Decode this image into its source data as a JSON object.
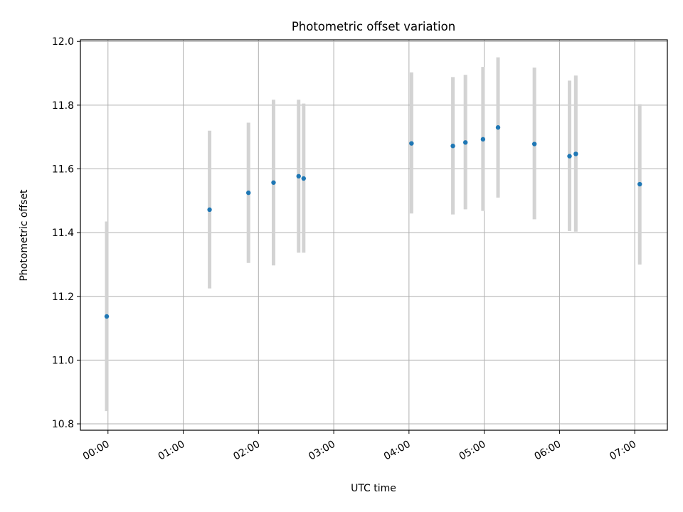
{
  "chart_data": {
    "type": "scatter",
    "title": "Photometric offset variation",
    "xlabel": "UTC time",
    "ylabel": "Photometric offset",
    "xlim": [
      "23:38",
      "07:26"
    ],
    "ylim": [
      10.78,
      12.005
    ],
    "x_ticks": [
      "00:00",
      "01:00",
      "02:00",
      "03:00",
      "04:00",
      "05:00",
      "06:00",
      "07:00"
    ],
    "y_ticks": [
      "10.8",
      "11.0",
      "11.2",
      "11.4",
      "11.6",
      "11.8",
      "12.0"
    ],
    "grid": true,
    "marker_color": "#1f77b4",
    "errorbar_color": "#d3d3d3",
    "points": [
      {
        "time": "23:59",
        "y": 11.137,
        "err_low": 10.84,
        "err_high": 11.435
      },
      {
        "time": "01:21",
        "y": 11.472,
        "err_low": 11.225,
        "err_high": 11.72
      },
      {
        "time": "01:52",
        "y": 11.525,
        "err_low": 11.305,
        "err_high": 11.745
      },
      {
        "time": "02:12",
        "y": 11.557,
        "err_low": 11.297,
        "err_high": 11.817
      },
      {
        "time": "02:32",
        "y": 11.577,
        "err_low": 11.337,
        "err_high": 11.817
      },
      {
        "time": "02:36",
        "y": 11.57,
        "err_low": 11.337,
        "err_high": 11.805
      },
      {
        "time": "04:02",
        "y": 11.68,
        "err_low": 11.46,
        "err_high": 11.903
      },
      {
        "time": "04:35",
        "y": 11.672,
        "err_low": 11.457,
        "err_high": 11.888
      },
      {
        "time": "04:45",
        "y": 11.683,
        "err_low": 11.473,
        "err_high": 11.895
      },
      {
        "time": "04:59",
        "y": 11.693,
        "err_low": 11.468,
        "err_high": 11.92
      },
      {
        "time": "05:11",
        "y": 11.73,
        "err_low": 11.51,
        "err_high": 11.95
      },
      {
        "time": "05:40",
        "y": 11.678,
        "err_low": 11.442,
        "err_high": 11.918
      },
      {
        "time": "06:08",
        "y": 11.64,
        "err_low": 11.405,
        "err_high": 11.877
      },
      {
        "time": "06:13",
        "y": 11.647,
        "err_low": 11.403,
        "err_high": 11.893
      },
      {
        "time": "07:04",
        "y": 11.552,
        "err_low": 11.3,
        "err_high": 11.803
      }
    ]
  }
}
